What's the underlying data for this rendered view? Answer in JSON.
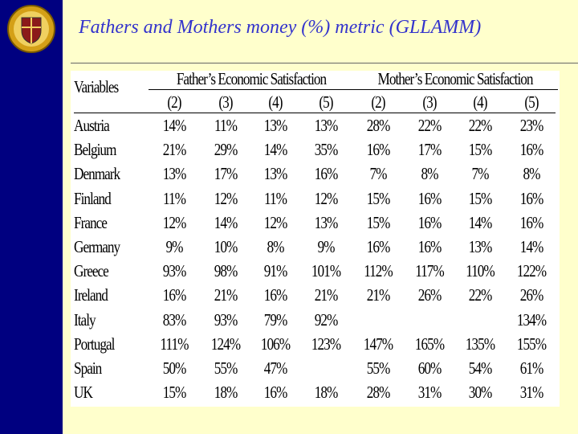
{
  "header": {
    "title": "Fathers and Mothers money (%) metric (GLLAMM)"
  },
  "table": {
    "row_header": "Variables",
    "groups": [
      "Father’s Economic Satisfaction",
      "Mother’s Economic Satisfaction"
    ],
    "columns": [
      "(2)",
      "(3)",
      "(4)",
      "(5)",
      "(2)",
      "(3)",
      "(4)",
      "(5)"
    ],
    "rows": [
      [
        "Austria",
        "14%",
        "11%",
        "13%",
        "13%",
        "28%",
        "22%",
        "22%",
        "23%"
      ],
      [
        "Belgium",
        "21%",
        "29%",
        "14%",
        "35%",
        "16%",
        "17%",
        "15%",
        "16%"
      ],
      [
        "Denmark",
        "13%",
        "17%",
        "13%",
        "16%",
        "7%",
        "8%",
        "7%",
        "8%"
      ],
      [
        "Finland",
        "11%",
        "12%",
        "11%",
        "12%",
        "15%",
        "16%",
        "15%",
        "16%"
      ],
      [
        "France",
        "12%",
        "14%",
        "12%",
        "13%",
        "15%",
        "16%",
        "14%",
        "16%"
      ],
      [
        "Germany",
        "9%",
        "10%",
        "8%",
        "9%",
        "16%",
        "16%",
        "13%",
        "14%"
      ],
      [
        "Greece",
        "93%",
        "98%",
        "91%",
        "101%",
        "112%",
        "117%",
        "110%",
        "122%"
      ],
      [
        "Ireland",
        "16%",
        "21%",
        "16%",
        "21%",
        "21%",
        "26%",
        "22%",
        "26%"
      ],
      [
        "Italy",
        "83%",
        "93%",
        "79%",
        "92%",
        null,
        null,
        null,
        "134%"
      ],
      [
        "Portugal",
        "111%",
        "124%",
        "106%",
        "123%",
        "147%",
        "165%",
        "135%",
        "155%"
      ],
      [
        "Spain",
        "50%",
        "55%",
        "47%",
        null,
        "55%",
        "60%",
        "54%",
        "61%"
      ],
      [
        "UK",
        "15%",
        "18%",
        "16%",
        "18%",
        "28%",
        "31%",
        "30%",
        "31%"
      ]
    ]
  }
}
